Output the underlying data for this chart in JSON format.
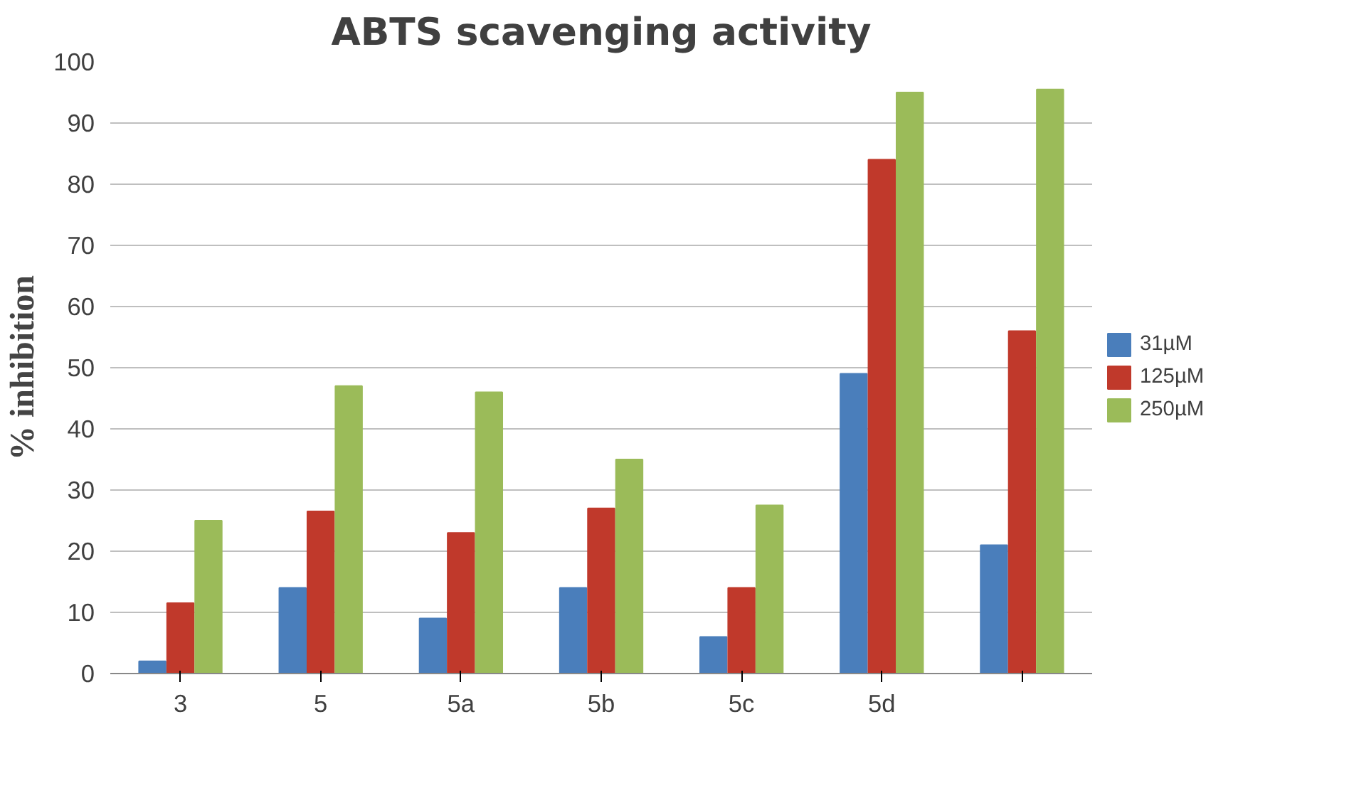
{
  "chart_data": {
    "type": "bar",
    "title": "ABTS scavenging activity",
    "ylabel": "% inhibition",
    "categories": [
      "3",
      "5",
      "5a",
      "5b",
      "5c",
      "5d",
      null
    ],
    "series": [
      {
        "name": "31µM",
        "color": "#4a7ebb",
        "values": [
          2,
          14,
          9,
          14,
          6,
          49,
          21
        ]
      },
      {
        "name": "125µM",
        "color": "#c0392b",
        "values": [
          11.5,
          26.5,
          23,
          27,
          14,
          84,
          56
        ]
      },
      {
        "name": "250µM",
        "color": "#9bbb59",
        "values": [
          25,
          47,
          46,
          35,
          27.5,
          95,
          95.5
        ]
      }
    ],
    "ylim": [
      0,
      100
    ],
    "yticks": [
      0,
      10,
      20,
      30,
      40,
      50,
      60,
      70,
      80,
      90,
      100
    ],
    "grid": "y",
    "legend": "right"
  }
}
